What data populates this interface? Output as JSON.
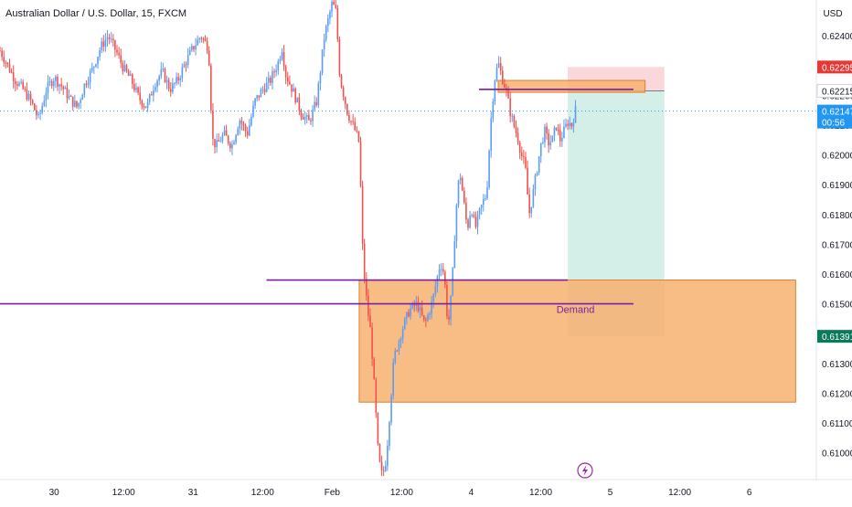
{
  "header": {
    "symbol_title": "Australian Dollar / U.S. Dollar, 15, FXCM"
  },
  "currency_button": "USD",
  "colors": {
    "up": "#5b9cf6",
    "down": "#ef5350",
    "zone_fill": "#f7b070",
    "zone_border": "#e0802a",
    "zone_line": "#e06a2a",
    "purple_line": "#7b1fa2",
    "stop_fill": "#f9d3d6",
    "target_fill": "#cfece6",
    "price_tag": "#2196f3",
    "stop_tag": "#e53935",
    "entry_tag": "#ffffff",
    "target_tag": "#0b7a5c",
    "axis_text": "#131722",
    "grid": "#f0f3fa"
  },
  "icons": {
    "lightning": "lightning-icon"
  },
  "chart_data": {
    "type": "candlestick",
    "title": "Australian Dollar / U.S. Dollar, 15, FXCM",
    "ylim": [
      0.6091,
      0.6252
    ],
    "y_ticks": [
      0.624,
      0.623,
      0.622,
      0.621,
      0.62,
      0.619,
      0.618,
      0.617,
      0.616,
      0.615,
      0.614,
      0.613,
      0.612,
      0.611,
      0.61
    ],
    "x_ticks": [
      {
        "label": "30",
        "t": 0.07
      },
      {
        "label": "12:00",
        "t": 0.16
      },
      {
        "label": "31",
        "t": 0.25
      },
      {
        "label": "12:00",
        "t": 0.34
      },
      {
        "label": "Feb",
        "t": 0.43
      },
      {
        "label": "12:00",
        "t": 0.52
      },
      {
        "label": "4",
        "t": 0.61
      },
      {
        "label": "12:00",
        "t": 0.7
      },
      {
        "label": "5",
        "t": 0.79
      },
      {
        "label": "12:00",
        "t": 0.88
      },
      {
        "label": "6",
        "t": 0.97
      },
      {
        "label": "12:00",
        "t": 1.06
      }
    ],
    "price_path": [
      [
        0.0,
        0.6235
      ],
      [
        0.01,
        0.623
      ],
      [
        0.02,
        0.6225
      ],
      [
        0.03,
        0.6222
      ],
      [
        0.04,
        0.6218
      ],
      [
        0.05,
        0.6212
      ],
      [
        0.06,
        0.6222
      ],
      [
        0.07,
        0.6226
      ],
      [
        0.08,
        0.6223
      ],
      [
        0.09,
        0.6219
      ],
      [
        0.1,
        0.6216
      ],
      [
        0.11,
        0.6224
      ],
      [
        0.12,
        0.6229
      ],
      [
        0.13,
        0.6236
      ],
      [
        0.14,
        0.624
      ],
      [
        0.15,
        0.6235
      ],
      [
        0.16,
        0.6229
      ],
      [
        0.17,
        0.6225
      ],
      [
        0.18,
        0.6219
      ],
      [
        0.19,
        0.6216
      ],
      [
        0.2,
        0.6224
      ],
      [
        0.21,
        0.6228
      ],
      [
        0.22,
        0.6222
      ],
      [
        0.23,
        0.6225
      ],
      [
        0.24,
        0.6231
      ],
      [
        0.25,
        0.6236
      ],
      [
        0.26,
        0.624
      ],
      [
        0.27,
        0.6236
      ],
      [
        0.275,
        0.6205
      ],
      [
        0.28,
        0.6203
      ],
      [
        0.29,
        0.6207
      ],
      [
        0.3,
        0.6203
      ],
      [
        0.31,
        0.6212
      ],
      [
        0.32,
        0.6207
      ],
      [
        0.33,
        0.6218
      ],
      [
        0.34,
        0.6222
      ],
      [
        0.35,
        0.6225
      ],
      [
        0.36,
        0.6231
      ],
      [
        0.365,
        0.6236
      ],
      [
        0.37,
        0.6227
      ],
      [
        0.38,
        0.6221
      ],
      [
        0.39,
        0.6214
      ],
      [
        0.4,
        0.6211
      ],
      [
        0.41,
        0.6218
      ],
      [
        0.42,
        0.624
      ],
      [
        0.43,
        0.6251
      ],
      [
        0.435,
        0.6248
      ],
      [
        0.44,
        0.6226
      ],
      [
        0.45,
        0.6214
      ],
      [
        0.46,
        0.6208
      ],
      [
        0.465,
        0.6204
      ],
      [
        0.47,
        0.6164
      ],
      [
        0.475,
        0.615
      ],
      [
        0.48,
        0.614
      ],
      [
        0.485,
        0.612
      ],
      [
        0.49,
        0.6098
      ],
      [
        0.495,
        0.6092
      ],
      [
        0.5,
        0.6098
      ],
      [
        0.505,
        0.6115
      ],
      [
        0.51,
        0.6132
      ],
      [
        0.52,
        0.6141
      ],
      [
        0.53,
        0.6148
      ],
      [
        0.54,
        0.615
      ],
      [
        0.55,
        0.6143
      ],
      [
        0.56,
        0.6151
      ],
      [
        0.57,
        0.6164
      ],
      [
        0.575,
        0.616
      ],
      [
        0.58,
        0.6142
      ],
      [
        0.585,
        0.6155
      ],
      [
        0.59,
        0.618
      ],
      [
        0.595,
        0.6195
      ],
      [
        0.6,
        0.6185
      ],
      [
        0.605,
        0.6175
      ],
      [
        0.61,
        0.6183
      ],
      [
        0.615,
        0.6175
      ],
      [
        0.62,
        0.618
      ],
      [
        0.625,
        0.6184
      ],
      [
        0.63,
        0.6187
      ],
      [
        0.635,
        0.621
      ],
      [
        0.64,
        0.6225
      ],
      [
        0.645,
        0.6231
      ],
      [
        0.65,
        0.6226
      ],
      [
        0.655,
        0.6222
      ],
      [
        0.66,
        0.6215
      ],
      [
        0.665,
        0.621
      ],
      [
        0.67,
        0.6206
      ],
      [
        0.675,
        0.62
      ],
      [
        0.68,
        0.6196
      ],
      [
        0.685,
        0.618
      ],
      [
        0.69,
        0.6187
      ],
      [
        0.695,
        0.6195
      ],
      [
        0.7,
        0.6203
      ],
      [
        0.705,
        0.6208
      ],
      [
        0.71,
        0.6204
      ],
      [
        0.715,
        0.6205
      ],
      [
        0.72,
        0.621
      ],
      [
        0.725,
        0.6205
      ],
      [
        0.73,
        0.6208
      ],
      [
        0.735,
        0.6211
      ],
      [
        0.74,
        0.621
      ],
      [
        0.745,
        0.6215
      ]
    ],
    "demand_zone_large": {
      "label": "Demand",
      "x": [
        0.465,
        1.03
      ],
      "y": [
        0.6158,
        0.6117
      ]
    },
    "supply_zone_small": {
      "x": [
        0.645,
        0.835
      ],
      "y": [
        0.6225,
        0.6221
      ]
    },
    "horizontal_lines": [
      {
        "y": 0.615,
        "x": [
          0.0,
          0.82
        ]
      },
      {
        "y": 0.6158,
        "x": [
          0.345,
          0.735
        ]
      },
      {
        "y": 0.6222,
        "x": [
          0.62,
          0.82
        ]
      }
    ],
    "position_tool": {
      "x": [
        0.735,
        0.86
      ],
      "entry": 0.62215,
      "stop": 0.62295,
      "target": 0.61391
    },
    "current_price": 0.62147,
    "price_tags": [
      {
        "value": "0.62295",
        "kind": "stop"
      },
      {
        "value": "0.62215",
        "kind": "entry"
      },
      {
        "value": "0.62147",
        "countdown": "00:56",
        "kind": "current"
      },
      {
        "value": "0.61391",
        "kind": "target"
      }
    ]
  }
}
